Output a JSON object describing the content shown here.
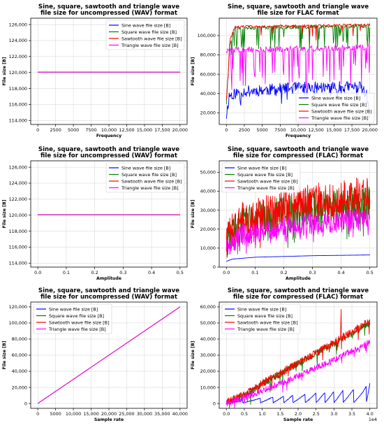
{
  "colors": {
    "sine": "#0000ff",
    "square": "#008000",
    "sawtooth": "#ff0000",
    "triangle": "#ff00ff"
  },
  "chart_data": [
    {
      "type": "line",
      "title": [
        "Sine, square, sawtooth and triangle wave",
        "file size for uncompressed (WAV) format"
      ],
      "xlabel": "Frequency",
      "ylabel": "File size [B]",
      "xlim": [
        -1000,
        21000
      ],
      "ylim": [
        113500,
        126800
      ],
      "xticks": [
        0,
        2500,
        5000,
        7500,
        10000,
        12500,
        15000,
        17500,
        20000
      ],
      "xtick_labels": [
        "0",
        "2500",
        "5000",
        "7500",
        "10,000",
        "12,500",
        "15,000",
        "17,500",
        "20,000"
      ],
      "yticks": [
        114000,
        116000,
        118000,
        120000,
        122000,
        124000,
        126000
      ],
      "ytick_labels": [
        "114,000",
        "116,000",
        "118,000",
        "120,000",
        "122,000",
        "124,000",
        "126,000"
      ],
      "grid": true,
      "legend": "top-right",
      "series": [
        {
          "name": "Sine wave file size [B]",
          "color": "#0000ff",
          "gen": "flat",
          "x0": 0,
          "x1": 20000,
          "value": 120044
        },
        {
          "name": "Square wave file size [B]",
          "color": "#008000",
          "gen": "flat",
          "x0": 0,
          "x1": 20000,
          "value": 120044
        },
        {
          "name": "Sawtooth wave file size [B]",
          "color": "#ff0000",
          "gen": "flat",
          "x0": 0,
          "x1": 20000,
          "value": 120044
        },
        {
          "name": "Triangle wave file size [B]",
          "color": "#ff00ff",
          "gen": "flat",
          "x0": 0,
          "x1": 20000,
          "value": 120044
        }
      ]
    },
    {
      "type": "line",
      "title": [
        "Sine, square, sawtooth and triangle wave",
        "file size for FLAC format"
      ],
      "xlabel": "Frequency",
      "ylabel": "File size [B]",
      "xlim": [
        -1000,
        21000
      ],
      "ylim": [
        8000,
        118000
      ],
      "xticks": [
        0,
        2500,
        5000,
        7500,
        10000,
        12500,
        15000,
        17500,
        20000
      ],
      "xtick_labels": [
        "0",
        "2500",
        "5000",
        "7500",
        "10,000",
        "12,500",
        "15,000",
        "17,500",
        "20,000"
      ],
      "yticks": [
        20000,
        40000,
        60000,
        80000,
        100000
      ],
      "ytick_labels": [
        "20,000",
        "40,000",
        "60,000",
        "80,000",
        "100,000"
      ],
      "grid": true,
      "legend": "bottom-right",
      "series": [
        {
          "name": "Sine wave file size [B]",
          "color": "#0000ff",
          "gen": "noisy",
          "x0": 0,
          "x1": 20000,
          "n": 260,
          "seed": 11,
          "base": [
            [
              0,
              17000
            ],
            [
              400,
              38000
            ],
            [
              2000,
              42000
            ],
            [
              10000,
              46000
            ],
            [
              18500,
              47000
            ],
            [
              19500,
              40000
            ],
            [
              20000,
              14000
            ]
          ],
          "amp": 6000,
          "dipProb": 0.05,
          "dipDepth": 12000
        },
        {
          "name": "Square wave file size [B]",
          "color": "#008000",
          "gen": "noisy",
          "x0": 0,
          "x1": 20000,
          "n": 240,
          "seed": 23,
          "base": [
            [
              0,
              30000
            ],
            [
              500,
              92000
            ],
            [
              1200,
              108000
            ],
            [
              20000,
              110000
            ]
          ],
          "amp": 2000,
          "dipProb": 0.12,
          "dipDepth": 25000
        },
        {
          "name": "Sawtooth wave file size [B]",
          "color": "#ff0000",
          "gen": "noisy",
          "x0": 0,
          "x1": 20000,
          "n": 240,
          "seed": 31,
          "base": [
            [
              0,
              34000
            ],
            [
              500,
              95000
            ],
            [
              1200,
              109000
            ],
            [
              20000,
              111000
            ]
          ],
          "amp": 1500,
          "dipProb": 0.06,
          "dipDepth": 15000
        },
        {
          "name": "Triangle wave file size [B]",
          "color": "#ff00ff",
          "gen": "noisy",
          "x0": 0,
          "x1": 20000,
          "n": 240,
          "seed": 47,
          "base": [
            [
              1500,
              85000
            ],
            [
              20000,
              88000
            ]
          ],
          "amp": 3000,
          "dipProb": 0.18,
          "dipDepth": 40000
        }
      ]
    },
    {
      "type": "line",
      "title": [
        "Sine, square, sawtooth and triangle wave",
        "file size for uncompressed (WAV) format"
      ],
      "xlabel": "Amplitude",
      "ylabel": "File size [B]",
      "xlim": [
        -0.025,
        0.525
      ],
      "ylim": [
        113500,
        126800
      ],
      "xticks": [
        0.0,
        0.1,
        0.2,
        0.3,
        0.4,
        0.5
      ],
      "xtick_labels": [
        "0.0",
        "0.1",
        "0.2",
        "0.3",
        "0.4",
        "0.5"
      ],
      "yticks": [
        114000,
        116000,
        118000,
        120000,
        122000,
        124000,
        126000
      ],
      "ytick_labels": [
        "114,000",
        "116,000",
        "118,000",
        "120,000",
        "122,000",
        "124,000",
        "126,000"
      ],
      "grid": true,
      "legend": "top-right",
      "series": [
        {
          "name": "Sine wave file size [B]",
          "color": "#0000ff",
          "gen": "flat",
          "x0": 0,
          "x1": 0.5,
          "value": 120044
        },
        {
          "name": "Square wave file size [B]",
          "color": "#008000",
          "gen": "flat",
          "x0": 0,
          "x1": 0.5,
          "value": 120044
        },
        {
          "name": "Sawtooth wave file size [B]",
          "color": "#ff0000",
          "gen": "flat",
          "x0": 0,
          "x1": 0.5,
          "value": 120044
        },
        {
          "name": "Triangle wave file size [B]",
          "color": "#ff00ff",
          "gen": "flat",
          "x0": 0,
          "x1": 0.5,
          "value": 120044
        }
      ]
    },
    {
      "type": "line",
      "title": [
        "Sine, square, sawtooth and triangle wave",
        "file size for compressed (FLAC) format"
      ],
      "xlabel": "Amplitude",
      "ylabel": "File size [B]",
      "xlim": [
        -0.025,
        0.525
      ],
      "ylim": [
        0,
        56000
      ],
      "xticks": [
        0.0,
        0.1,
        0.2,
        0.3,
        0.4,
        0.5
      ],
      "xtick_labels": [
        "0.0",
        "0.1",
        "0.2",
        "0.3",
        "0.4",
        "0.5"
      ],
      "yticks": [
        0,
        10000,
        20000,
        30000,
        40000,
        50000
      ],
      "ytick_labels": [
        "0",
        "10,000",
        "20,000",
        "30,000",
        "40,000",
        "50,000"
      ],
      "grid": true,
      "legend": "top-left",
      "series": [
        {
          "name": "Sine wave file size [B]",
          "color": "#0000ff",
          "gen": "noisy",
          "x0": 0,
          "x1": 0.5,
          "n": 100,
          "seed": 5,
          "base": [
            [
              0,
              3000
            ],
            [
              0.02,
              4200
            ],
            [
              0.1,
              5200
            ],
            [
              0.3,
              6000
            ],
            [
              0.5,
              6400
            ]
          ],
          "amp": 0,
          "dipProb": 0,
          "dipDepth": 0
        },
        {
          "name": "Square wave file size [B]",
          "color": "#008000",
          "gen": "noisy",
          "x0": 0,
          "x1": 0.5,
          "n": 420,
          "seed": 61,
          "base": [
            [
              0,
              13000
            ],
            [
              0.05,
              23000
            ],
            [
              0.25,
              30000
            ],
            [
              0.5,
              34000
            ]
          ],
          "amp": 9000,
          "dipProb": 0.1,
          "dipDepth": 12000
        },
        {
          "name": "Sawtooth wave file size [B]",
          "color": "#ff0000",
          "gen": "noisy",
          "x0": 0,
          "x1": 0.5,
          "n": 420,
          "seed": 73,
          "base": [
            [
              0,
              14000
            ],
            [
              0.05,
              24000
            ],
            [
              0.25,
              33000
            ],
            [
              0.5,
              38000
            ]
          ],
          "amp": 10000,
          "dipProb": 0.06,
          "dipDepth": 10000
        },
        {
          "name": "Triangle wave file size [B]",
          "color": "#ff00ff",
          "gen": "noisy",
          "x0": 0,
          "x1": 0.5,
          "n": 420,
          "seed": 89,
          "base": [
            [
              0,
              11000
            ],
            [
              0.05,
              17000
            ],
            [
              0.25,
              22000
            ],
            [
              0.5,
              26000
            ]
          ],
          "amp": 6000,
          "dipProb": 0.08,
          "dipDepth": 6000
        }
      ]
    },
    {
      "type": "line",
      "title": [
        "Sine, square, sawtooth and triangle wave",
        "file size for uncompressed (WAV) format"
      ],
      "xlabel": "Sample rate",
      "ylabel": "File size [B]",
      "xlim": [
        -2000,
        42000
      ],
      "ylim": [
        -6000,
        126000
      ],
      "xticks": [
        0,
        5000,
        10000,
        15000,
        20000,
        25000,
        30000,
        35000,
        40000
      ],
      "xtick_labels": [
        "0",
        "5000",
        "10,000",
        "15,000",
        "20,000",
        "25,000",
        "30,000",
        "35,000",
        "40,000"
      ],
      "yticks": [
        0,
        20000,
        40000,
        60000,
        80000,
        100000,
        120000
      ],
      "ytick_labels": [
        "0",
        "20,000",
        "40,000",
        "60,000",
        "80,000",
        "100,000",
        "120,000"
      ],
      "grid": true,
      "legend": "top-left",
      "series": [
        {
          "name": "Sine wave file size [B]",
          "color": "#0000ff",
          "gen": "line",
          "points": [
            [
              0,
              44
            ],
            [
              40000,
              120044
            ]
          ]
        },
        {
          "name": "Square wave file size [B]",
          "color": "#008000",
          "gen": "line",
          "points": [
            [
              0,
              44
            ],
            [
              40000,
              120044
            ]
          ]
        },
        {
          "name": "Sawtooth wave file size [B]",
          "color": "#ff0000",
          "gen": "line",
          "points": [
            [
              0,
              44
            ],
            [
              40000,
              120044
            ]
          ]
        },
        {
          "name": "Triangle wave file size [B]",
          "color": "#ff00ff",
          "gen": "line",
          "points": [
            [
              0,
              44
            ],
            [
              40000,
              120044
            ]
          ]
        }
      ]
    },
    {
      "type": "line",
      "title": [
        "Sine, square, sawtooth and triangle wave",
        "file size for compressed (FLAC) format"
      ],
      "xlabel": "Sample rate",
      "ylabel": "File size [B]",
      "xlim": [
        -0.2,
        4.2
      ],
      "ylim": [
        -3000,
        63000
      ],
      "xticks": [
        0.0,
        0.5,
        1.0,
        1.5,
        2.0,
        2.5,
        3.0,
        3.5,
        4.0
      ],
      "xtick_labels": [
        "0.0",
        "0.5",
        "1.0",
        "1.5",
        "2.0",
        "2.5",
        "3.0",
        "3.5",
        "4.0"
      ],
      "yticks": [
        0,
        10000,
        20000,
        30000,
        40000,
        50000,
        60000
      ],
      "ytick_labels": [
        "0",
        "10,000",
        "20,000",
        "30,000",
        "40,000",
        "50,000",
        "60,000"
      ],
      "x_offset_label": "1e4",
      "grid": true,
      "legend": "top-left",
      "series": [
        {
          "name": "Sine wave file size [B]",
          "color": "#0000ff",
          "gen": "saw",
          "x0": 0,
          "x1": 4,
          "n": 420,
          "seed": 7,
          "resets": [
            0.45,
            0.95,
            1.3,
            1.6,
            1.85,
            2.2,
            2.5,
            2.75,
            3.0,
            3.25,
            3.55,
            3.9
          ],
          "env": [
            [
              0,
              500
            ],
            [
              0.5,
              2500
            ],
            [
              1.0,
              3500
            ],
            [
              2.0,
              5500
            ],
            [
              3.0,
              7500
            ],
            [
              3.8,
              9500
            ],
            [
              4.0,
              12500
            ]
          ],
          "low": 500
        },
        {
          "name": "Square wave file size [B]",
          "color": "#008000",
          "gen": "noisy",
          "x0": 0,
          "x1": 4,
          "n": 420,
          "seed": 17,
          "base": [
            [
              0,
              500
            ],
            [
              0.5,
              5000
            ],
            [
              1.0,
              12000
            ],
            [
              2.0,
              25000
            ],
            [
              3.0,
              37000
            ],
            [
              4.0,
              50000
            ]
          ],
          "amp": 2000,
          "dipProb": 0.03,
          "dipDepth": 8000
        },
        {
          "name": "Sawtooth wave file size [B]",
          "color": "#ff0000",
          "gen": "noisy",
          "x0": 0,
          "x1": 4,
          "n": 420,
          "seed": 29,
          "base": [
            [
              0,
              600
            ],
            [
              0.5,
              5500
            ],
            [
              1.0,
              12500
            ],
            [
              2.0,
              25000
            ],
            [
              3.0,
              38000
            ],
            [
              4.0,
              51000
            ]
          ],
          "amp": 2500,
          "dipProb": 0.02,
          "dipDepth": 6000,
          "spikes": [
            [
              3.2,
              58500
            ]
          ]
        },
        {
          "name": "Triangle wave file size [B]",
          "color": "#ff00ff",
          "gen": "noisy",
          "x0": 0,
          "x1": 4,
          "n": 420,
          "seed": 41,
          "base": [
            [
              0,
              300
            ],
            [
              0.5,
              3500
            ],
            [
              1.0,
              8000
            ],
            [
              2.0,
              17000
            ],
            [
              3.0,
              27000
            ],
            [
              4.0,
              38000
            ]
          ],
          "amp": 2000,
          "dipProb": 0.03,
          "dipDepth": 5000
        }
      ]
    }
  ]
}
